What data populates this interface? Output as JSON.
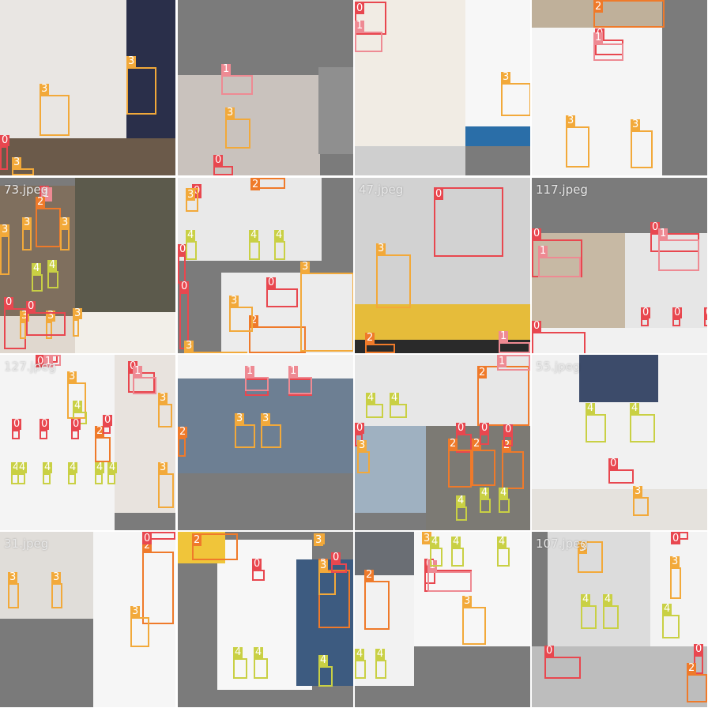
{
  "mosaic": {
    "tile_labels": [
      "",
      "",
      "",
      "",
      "73.jpeg",
      "",
      "47.jpeg",
      "117.jpeg",
      "127.jpeg",
      "",
      "",
      "55.jpeg",
      "31.jpeg",
      "",
      "",
      "107.jpeg"
    ],
    "classes": {
      "0": {
        "color": "#e8474f"
      },
      "1": {
        "color": "#ee8a93"
      },
      "2": {
        "color": "#ef7a2a"
      },
      "3": {
        "color": "#f2a93a"
      },
      "4": {
        "color": "#c9d044"
      }
    },
    "tag_labels": [
      "0",
      "1",
      "2",
      "3",
      "4"
    ]
  }
}
